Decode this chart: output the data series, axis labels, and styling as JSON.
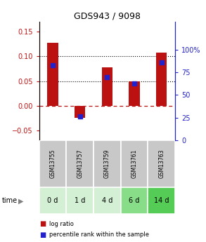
{
  "title": "GDS943 / 9098",
  "samples": [
    "GSM13755",
    "GSM13757",
    "GSM13759",
    "GSM13761",
    "GSM13763"
  ],
  "time_labels": [
    "0 d",
    "1 d",
    "4 d",
    "6 d",
    "14 d"
  ],
  "log_ratio": [
    0.128,
    -0.025,
    0.078,
    0.05,
    0.107
  ],
  "percentile_rank": [
    0.83,
    0.26,
    0.7,
    0.63,
    0.86
  ],
  "bar_color": "#bb1111",
  "dot_color": "#2222cc",
  "ylim_left": [
    -0.07,
    0.17
  ],
  "ylim_right": [
    0.0,
    1.3077
  ],
  "yticks_left": [
    -0.05,
    0.0,
    0.05,
    0.1,
    0.15
  ],
  "yticks_right": [
    0.0,
    0.25,
    0.5,
    0.75,
    1.0
  ],
  "ytick_labels_right": [
    "0",
    "25",
    "50",
    "75",
    "100%"
  ],
  "grid_values": [
    0.05,
    0.1
  ],
  "zero_line": 0.0,
  "sample_bg": "#c8c8c8",
  "time_bg_colors": [
    "#d4f0d4",
    "#d4f0d4",
    "#d4f0d4",
    "#88dd88",
    "#55cc55"
  ],
  "legend_log": "log ratio",
  "legend_pct": "percentile rank within the sample"
}
